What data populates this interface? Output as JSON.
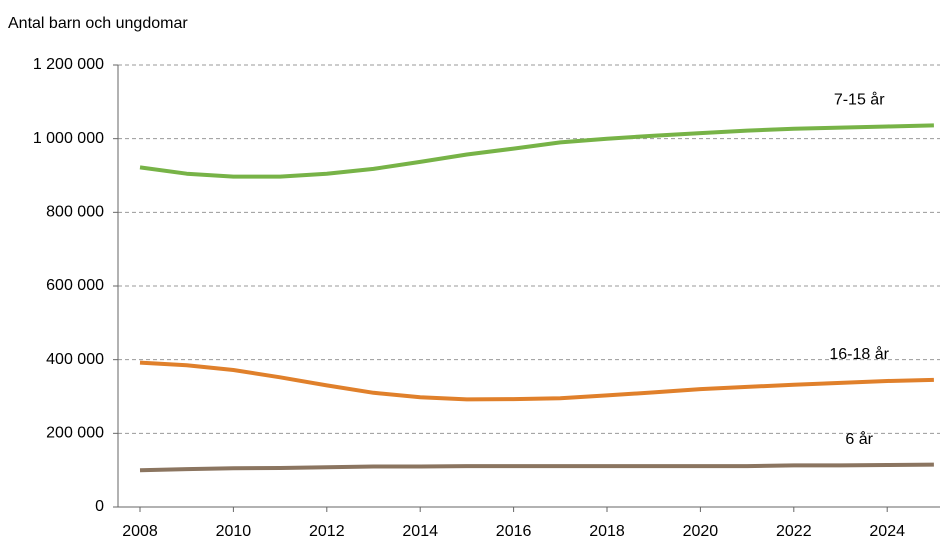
{
  "chart_data": {
    "type": "line",
    "y_axis_label": "Antal barn och ungdomar",
    "categories": [
      "2008",
      null,
      "2010",
      null,
      "2012",
      null,
      "2014",
      null,
      "2016",
      null,
      "2018",
      null,
      "2020",
      null,
      "2022",
      null,
      "2024",
      null
    ],
    "series": [
      {
        "name": "7-15 år",
        "color": "#77b347",
        "values": [
          922000,
          905000,
          897000,
          897000,
          905000,
          918000,
          937000,
          957000,
          973000,
          990000,
          1000000,
          1008000,
          1015000,
          1022000,
          1027000,
          1030000,
          1033000,
          1036000
        ]
      },
      {
        "name": "16-18 år",
        "color": "#e0802b",
        "values": [
          392000,
          385000,
          372000,
          352000,
          330000,
          310000,
          298000,
          292000,
          293000,
          295000,
          303000,
          311000,
          320000,
          326000,
          332000,
          337000,
          342000,
          345000
        ]
      },
      {
        "name": "6 år",
        "color": "#8b7560",
        "values": [
          100000,
          103000,
          105000,
          106000,
          108000,
          110000,
          110000,
          111000,
          111000,
          111000,
          111000,
          111000,
          111000,
          111000,
          113000,
          113000,
          114000,
          115000
        ]
      }
    ],
    "ylim": [
      0,
      1200000
    ],
    "yticks": [
      0,
      {
        "value": 200000,
        "label": "200 000"
      },
      {
        "value": 400000,
        "label": "400 000"
      },
      {
        "value": 600000,
        "label": "600 000"
      },
      {
        "value": 800000,
        "label": "800 000"
      },
      {
        "value": 1000000,
        "label": "1 000 000"
      },
      {
        "value": 1200000,
        "label": "1 200 000"
      }
    ],
    "grid": true
  }
}
